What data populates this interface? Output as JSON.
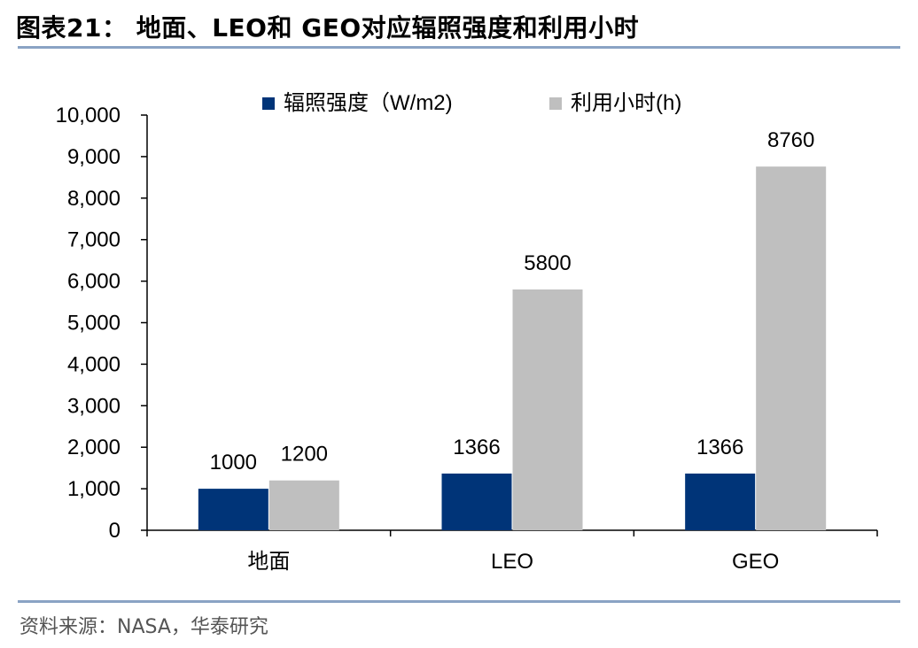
{
  "header": {
    "title": "图表21： 地面、LEO和 GEO对应辐照强度和利用小时"
  },
  "footer": {
    "source": "资料来源：NASA，华泰研究"
  },
  "colors": {
    "series1": "#003478",
    "series2": "#bfbfbf",
    "rule": "#8aa3c4"
  },
  "chart_data": {
    "type": "bar",
    "categories": [
      "地面",
      "LEO",
      "GEO"
    ],
    "series": [
      {
        "name": "辐照强度（W/m2)",
        "values": [
          1000,
          1366,
          1366
        ],
        "labels": [
          "1000",
          "1366",
          "1366"
        ]
      },
      {
        "name": "利用小时(h)",
        "values": [
          1200,
          5800,
          8760
        ],
        "labels": [
          "1200",
          "5800",
          "8760"
        ]
      }
    ],
    "ylim": [
      0,
      10000
    ],
    "yticks": [
      0,
      1000,
      2000,
      3000,
      4000,
      5000,
      6000,
      7000,
      8000,
      9000,
      10000
    ],
    "ytick_labels": [
      "0",
      "1,000",
      "2,000",
      "3,000",
      "4,000",
      "5,000",
      "6,000",
      "7,000",
      "8,000",
      "9,000",
      "10,000"
    ],
    "legend_position": "top-center",
    "grid": false
  }
}
